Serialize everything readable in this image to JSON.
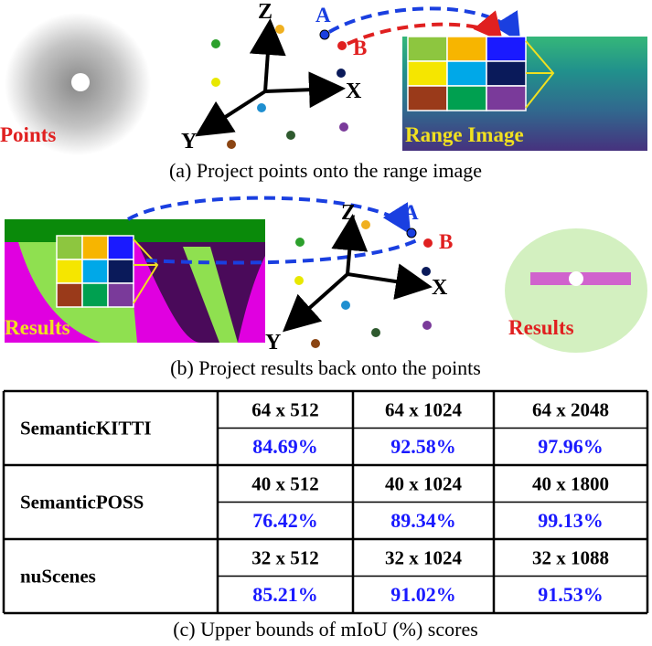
{
  "panel_a": {
    "points_label": "Points",
    "range_label": "Range Image",
    "axes": {
      "z": "Z",
      "x": "X",
      "y": "Y"
    },
    "point_a": "A",
    "point_b": "B",
    "caption": "(a) Project points onto the range image"
  },
  "panel_b": {
    "range_results_label": "Results",
    "points_results_label": "Results",
    "axes": {
      "z": "Z",
      "x": "X",
      "y": "Y"
    },
    "point_a": "A",
    "point_b": "B",
    "caption": "(b) Project results back onto the points"
  },
  "table": {
    "rows": [
      [
        "SemanticKITTI",
        "64 x 512",
        "64 x 1024",
        "64 x 2048"
      ],
      [
        "",
        "84.69%",
        "92.58%",
        "97.96%"
      ],
      [
        "SemanticPOSS",
        "40 x 512",
        "40 x 1024",
        "40 x 1800"
      ],
      [
        "",
        "76.42%",
        "89.34%",
        "99.13%"
      ],
      [
        "nuScenes",
        "32 x 512",
        "32 x 1024",
        "32 x 1088"
      ],
      [
        "",
        "85.21%",
        "91.02%",
        "91.53%"
      ]
    ]
  },
  "caption_c": "(c) Upper bounds of mIoU (%) scores"
}
